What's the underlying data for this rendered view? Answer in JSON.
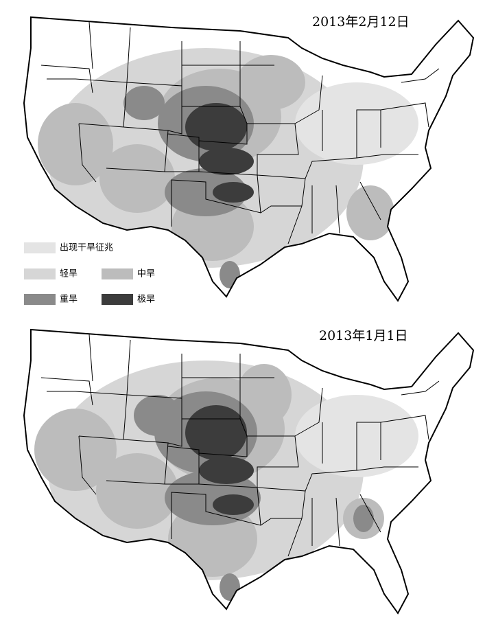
{
  "maps": [
    {
      "date": "2013年2月12日"
    },
    {
      "date": "2013年1月1日"
    }
  ],
  "legend": [
    {
      "label": "出现干旱征兆",
      "color": "#e4e4e4"
    },
    {
      "label": "轻旱",
      "color": "#d6d6d6"
    },
    {
      "label": "中旱",
      "color": "#bcbcbc"
    },
    {
      "label": "重旱",
      "color": "#8a8a8a"
    },
    {
      "label": "极旱",
      "color": "#3c3c3c"
    }
  ]
}
